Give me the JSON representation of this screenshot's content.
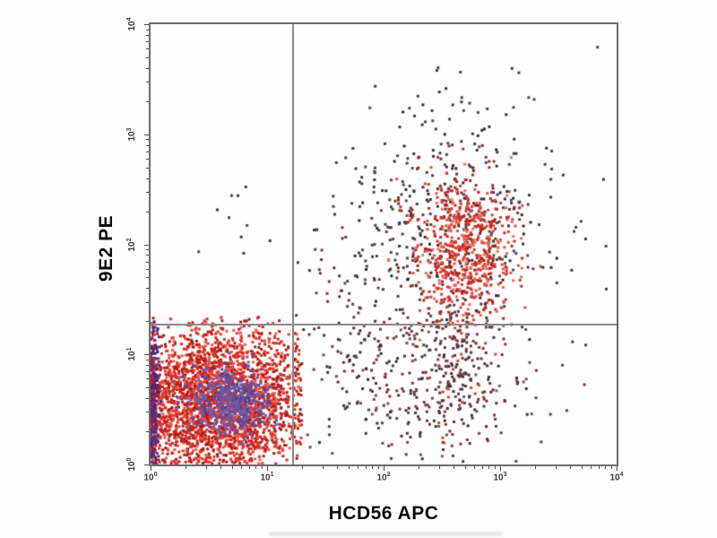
{
  "chart_data": {
    "type": "scatter",
    "subtype": "flow-cytometry-dot-plot",
    "title": "",
    "xlabel": "HCD56 APC",
    "ylabel": "9E2 PE",
    "x_scale": "log",
    "y_scale": "log",
    "xlim": [
      1,
      10000
    ],
    "ylim": [
      1,
      10000
    ],
    "grid": false,
    "tick_base": "10",
    "x_tick_exponents": [
      0,
      1,
      2,
      3,
      4
    ],
    "y_tick_exponents": [
      0,
      1,
      2,
      3,
      4
    ],
    "quadrant_gate": {
      "x_decade": 1.22,
      "y_decade": 1.27,
      "x_value_approx": 17,
      "y_value_approx": 19,
      "color": "#8a8a8a"
    },
    "populations": [
      {
        "name": "ll-dense-red",
        "description": "double-negative dense cluster lower-left",
        "n": 2500,
        "cx": 0.58,
        "cy": 0.55,
        "sdx": 0.42,
        "sdy": 0.37,
        "bounds": [
          0,
          1.3,
          0,
          1.34
        ],
        "size": 3,
        "palette": [
          "#d7271f",
          "#e23a2e",
          "#c01d15",
          "#ea5a4b",
          "#a81a12"
        ]
      },
      {
        "name": "ll-axis-pileup",
        "description": "events piled on y-axis left edge",
        "n": 320,
        "xhn": 0.035,
        "cx": 0,
        "sdx": 0,
        "cy": 0.55,
        "sdy": 0.38,
        "bounds": [
          0,
          0.14,
          0,
          1.3
        ],
        "size": 3,
        "palette": [
          "#3f2a78",
          "#6d2660",
          "#9c2344",
          "#503090",
          "#c22030"
        ]
      },
      {
        "name": "ll-core-blue",
        "description": "highest-density blue core of lower-left cluster",
        "n": 520,
        "cx": 0.69,
        "cy": 0.57,
        "sdx": 0.17,
        "sdy": 0.15,
        "bounds": [
          0.05,
          1.22,
          0.05,
          1.25
        ],
        "size": 3,
        "palette": [
          "#5553a5",
          "#4a489c",
          "#6562b0",
          "#7c58a8",
          "#8a4d96"
        ]
      },
      {
        "name": "bridge-scatter",
        "description": "sparse events between lower-left and upper-right",
        "n": 90,
        "cx": 1.9,
        "cy": 1.55,
        "sdx": 0.38,
        "sdy": 0.5,
        "bounds": [
          1.25,
          4,
          0.05,
          3.6
        ],
        "size": 3,
        "palette": [
          "#473339",
          "#59424a",
          "#6b3a40"
        ]
      },
      {
        "name": "mid-low-scatter",
        "description": "sparse events below horizontal gate right half",
        "n": 300,
        "cx": 2.35,
        "cy": 0.85,
        "sdx": 0.5,
        "sdy": 0.42,
        "bounds": [
          1.28,
          3.9,
          0.02,
          1.32
        ],
        "size": 3,
        "palette": [
          "#4c363b",
          "#6b3a40",
          "#8c3038",
          "#3d3036",
          "#74504f"
        ]
      },
      {
        "name": "ul-sparse",
        "description": "few events upper-left quadrant",
        "n": 10,
        "cx": 0.82,
        "cy": 2.1,
        "sdx": 0.22,
        "sdy": 0.26,
        "bounds": [
          0.1,
          1.2,
          1.4,
          2.6
        ],
        "size": 3,
        "palette": [
          "#473339",
          "#59424a"
        ]
      },
      {
        "name": "ur-dark-scatter",
        "description": "dark scattered events around NK cluster",
        "n": 400,
        "cx": 2.58,
        "cy": 2.25,
        "sdx": 0.52,
        "sdy": 0.55,
        "bounds": [
          1.3,
          3.92,
          0.2,
          3.85
        ],
        "size": 3,
        "palette": [
          "#473339",
          "#59424a",
          "#332a31",
          "#61403f",
          "#513a44"
        ]
      },
      {
        "name": "ur-nk-red",
        "description": "CD56-positive red cluster upper-right",
        "n": 650,
        "cx": 2.71,
        "cy": 1.93,
        "sdx": 0.21,
        "sdy": 0.33,
        "bounds": [
          1.5,
          3.6,
          1.1,
          3.2
        ],
        "size": 3,
        "palette": [
          "#d83a30",
          "#e05045",
          "#c52a22",
          "#ec6d5e",
          "#b2241c"
        ]
      },
      {
        "name": "ur-tail",
        "description": "trail of events below NK cluster crossing gate",
        "n": 150,
        "cx": 2.66,
        "cy": 0.95,
        "sdx": 0.16,
        "sdy": 0.4,
        "bounds": [
          1.9,
          3.4,
          0.05,
          1.6
        ],
        "size": 3,
        "palette": [
          "#5a3a40",
          "#8c3038",
          "#c84a42",
          "#43333a"
        ]
      }
    ],
    "style": {
      "plot_border_color": "#6b6b6b",
      "tick_color": "#4a4a4a",
      "tick_label_color": "#3c3c3c",
      "axis_label_color": "#0c0c0c",
      "background": "#fdfdfd"
    }
  }
}
